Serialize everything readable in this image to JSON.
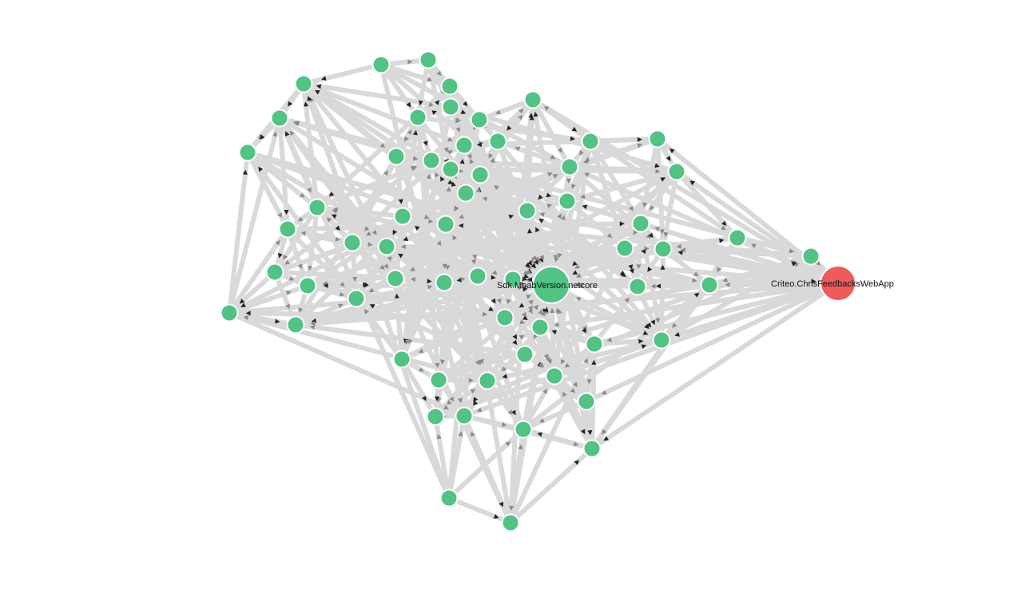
{
  "graph": {
    "colors": {
      "edge": "#d9d9d9",
      "arrow_dark": "#222222",
      "arrow_light": "#8a8a8a",
      "node_default": "#52c285",
      "node_selected": "#ef5b5b",
      "node_stroke": "#ffffff"
    },
    "labels": {
      "central_node": "Sdk.MoabVersion.netcore",
      "selected_node": "Criteo.ChrisFeedbacksWebApp"
    }
  }
}
